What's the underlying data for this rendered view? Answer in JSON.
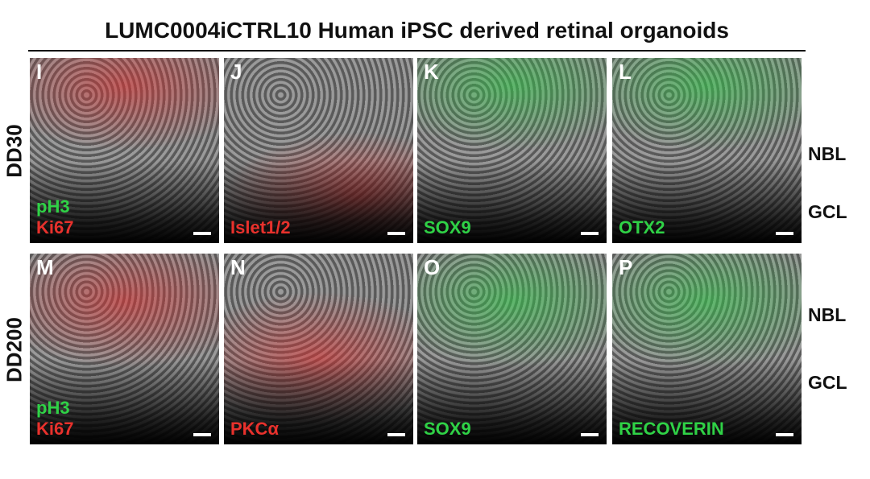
{
  "title": "LUMC0004iCTRL10 Human iPSC derived retinal organoids",
  "rows": [
    {
      "label": "DD30",
      "layers": [
        "NBL",
        "GCL"
      ],
      "panels": [
        {
          "letter": "I",
          "markers": [
            {
              "text": "pH3",
              "color": "green"
            },
            {
              "text": "Ki67",
              "color": "red"
            }
          ]
        },
        {
          "letter": "J",
          "markers": [
            {
              "text": "Islet1/2",
              "color": "red"
            }
          ]
        },
        {
          "letter": "K",
          "markers": [
            {
              "text": "SOX9",
              "color": "green"
            }
          ]
        },
        {
          "letter": "L",
          "markers": [
            {
              "text": "OTX2",
              "color": "green"
            }
          ]
        }
      ]
    },
    {
      "label": "DD200",
      "layers": [
        "NBL",
        "GCL"
      ],
      "panels": [
        {
          "letter": "M",
          "markers": [
            {
              "text": "pH3",
              "color": "green"
            },
            {
              "text": "Ki67",
              "color": "red"
            }
          ]
        },
        {
          "letter": "N",
          "markers": [
            {
              "text": "PKCα",
              "color": "red"
            }
          ]
        },
        {
          "letter": "O",
          "markers": [
            {
              "text": "SOX9",
              "color": "green"
            }
          ]
        },
        {
          "letter": "P",
          "markers": [
            {
              "text": "RECOVERIN",
              "color": "green"
            }
          ]
        }
      ]
    }
  ]
}
